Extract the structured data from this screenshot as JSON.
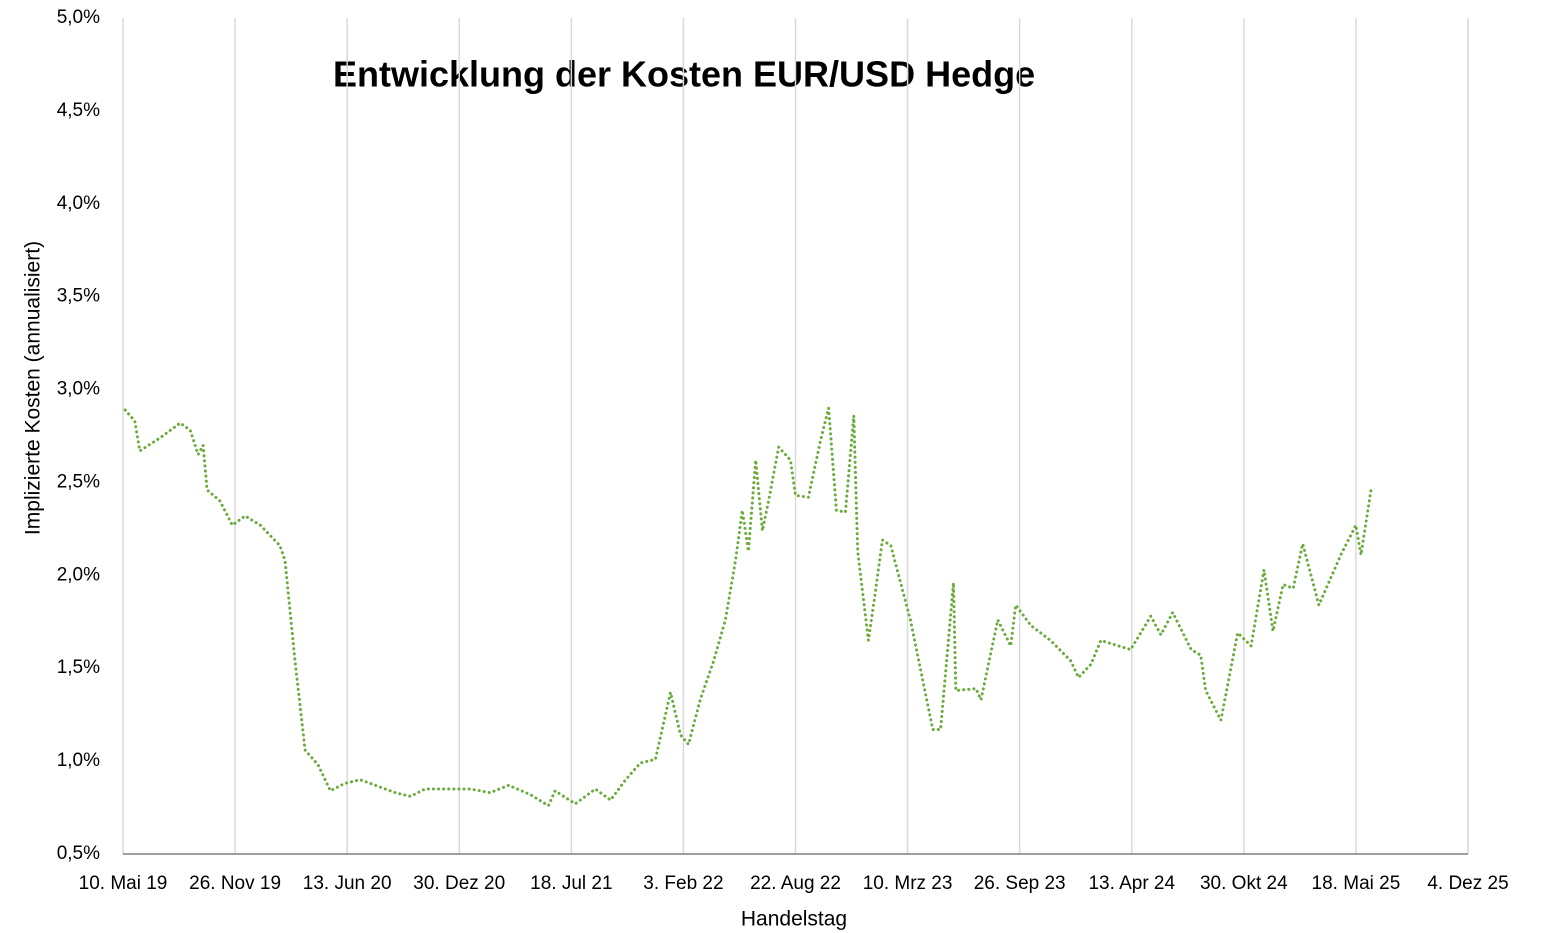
{
  "chart_data": {
    "type": "line",
    "title": "Entwicklung der Kosten EUR/USD Hedge",
    "x_label": "Handelstag",
    "y_label": "Implizierte Kosten (annualisiert)",
    "grid": "x",
    "series": [
      {
        "name": "EUR/USD Hedge",
        "color": "#6aab3c",
        "x": [
          "2019-05-14",
          "2019-05-31",
          "2019-06-09",
          "2019-07-15",
          "2019-08-20",
          "2019-09-07",
          "2019-09-21",
          "2019-09-30",
          "2019-10-07",
          "2019-10-30",
          "2019-11-21",
          "2019-12-14",
          "2020-01-10",
          "2020-02-14",
          "2020-02-23",
          "2020-03-12",
          "2020-03-30",
          "2020-04-22",
          "2020-05-14",
          "2020-06-09",
          "2020-07-06",
          "2020-09-07",
          "2020-10-04",
          "2020-10-30",
          "2021-01-19",
          "2021-02-23",
          "2021-03-28",
          "2021-05-06",
          "2021-06-07",
          "2021-06-19",
          "2021-07-25",
          "2021-08-30",
          "2021-09-26",
          "2021-10-23",
          "2021-11-18",
          "2021-12-15",
          "2022-01-02",
          "2022-01-11",
          "2022-01-29",
          "2022-02-12",
          "2022-03-05",
          "2022-03-29",
          "2022-04-19",
          "2022-05-07",
          "2022-05-19",
          "2022-05-30",
          "2022-06-12",
          "2022-06-24",
          "2022-07-05",
          "2022-07-23",
          "2022-08-13",
          "2022-08-22",
          "2022-09-14",
          "2022-10-06",
          "2022-10-20",
          "2022-11-03",
          "2022-11-19",
          "2022-12-04",
          "2022-12-11",
          "2022-12-30",
          "2023-01-12",
          "2023-01-24",
          "2023-02-08",
          "2023-03-15",
          "2023-04-24",
          "2023-05-08",
          "2023-05-31",
          "2023-06-04",
          "2023-07-10",
          "2023-07-19",
          "2023-08-18",
          "2023-09-10",
          "2023-09-19",
          "2023-10-16",
          "2023-11-20",
          "2023-12-26",
          "2024-01-09",
          "2024-01-31",
          "2024-02-18",
          "2024-04-11",
          "2024-05-17",
          "2024-06-04",
          "2024-06-25",
          "2024-07-28",
          "2024-08-14",
          "2024-08-23",
          "2024-09-19",
          "2024-10-19",
          "2024-11-12",
          "2024-12-05",
          "2024-12-21",
          "2025-01-08",
          "2025-01-26",
          "2025-02-12",
          "2025-03-13",
          "2025-04-21",
          "2025-05-18",
          "2025-05-27",
          "2025-06-14"
        ],
        "values": [
          2.89,
          2.83,
          2.67,
          2.74,
          2.82,
          2.78,
          2.65,
          2.7,
          2.46,
          2.4,
          2.27,
          2.32,
          2.27,
          2.16,
          2.08,
          1.54,
          1.06,
          0.98,
          0.84,
          0.88,
          0.9,
          0.83,
          0.81,
          0.85,
          0.85,
          0.83,
          0.87,
          0.82,
          0.76,
          0.84,
          0.77,
          0.85,
          0.79,
          0.9,
          0.99,
          1.01,
          1.25,
          1.37,
          1.14,
          1.09,
          1.33,
          1.54,
          1.76,
          2.08,
          2.35,
          2.13,
          2.62,
          2.24,
          2.4,
          2.69,
          2.62,
          2.43,
          2.42,
          2.73,
          2.9,
          2.35,
          2.34,
          2.86,
          2.13,
          1.65,
          1.92,
          2.19,
          2.16,
          1.76,
          1.17,
          1.17,
          1.96,
          1.38,
          1.39,
          1.33,
          1.76,
          1.62,
          1.84,
          1.73,
          1.65,
          1.54,
          1.45,
          1.52,
          1.65,
          1.6,
          1.78,
          1.68,
          1.8,
          1.6,
          1.57,
          1.38,
          1.22,
          1.69,
          1.62,
          2.03,
          1.7,
          1.95,
          1.93,
          2.17,
          1.84,
          2.11,
          2.27,
          2.11,
          2.46
        ]
      }
    ],
    "xlim": [
      "2019-05-10",
      "2025-12-04"
    ],
    "xticks": [
      {
        "value": "2019-05-10",
        "label": "10. Mai 19"
      },
      {
        "value": "2019-11-26",
        "label": "26. Nov 19"
      },
      {
        "value": "2020-06-13",
        "label": "13. Jun 20"
      },
      {
        "value": "2020-12-30",
        "label": "30. Dez 20"
      },
      {
        "value": "2021-07-18",
        "label": "18. Jul 21"
      },
      {
        "value": "2022-02-03",
        "label": "3. Feb 22"
      },
      {
        "value": "2022-08-22",
        "label": "22. Aug 22"
      },
      {
        "value": "2023-03-10",
        "label": "10. Mrz 23"
      },
      {
        "value": "2023-09-26",
        "label": "26. Sep 23"
      },
      {
        "value": "2024-04-13",
        "label": "13. Apr 24"
      },
      {
        "value": "2024-10-30",
        "label": "30. Okt 24"
      },
      {
        "value": "2025-05-18",
        "label": "18. Mai 25"
      },
      {
        "value": "2025-12-04",
        "label": "4. Dez 25"
      }
    ],
    "ylim": [
      0.5,
      5
    ],
    "yticks": [
      {
        "value": 0.5,
        "label": "0,5%"
      },
      {
        "value": 1,
        "label": "1,0%"
      },
      {
        "value": 1.5,
        "label": "1,5%"
      },
      {
        "value": 2,
        "label": "2,0%"
      },
      {
        "value": 2.5,
        "label": "2,5%"
      },
      {
        "value": 3,
        "label": "3,0%"
      },
      {
        "value": 3.5,
        "label": "3,5%"
      },
      {
        "value": 4,
        "label": "4,0%"
      },
      {
        "value": 4.5,
        "label": "4,5%"
      },
      {
        "value": 5,
        "label": "5,0%"
      }
    ]
  }
}
